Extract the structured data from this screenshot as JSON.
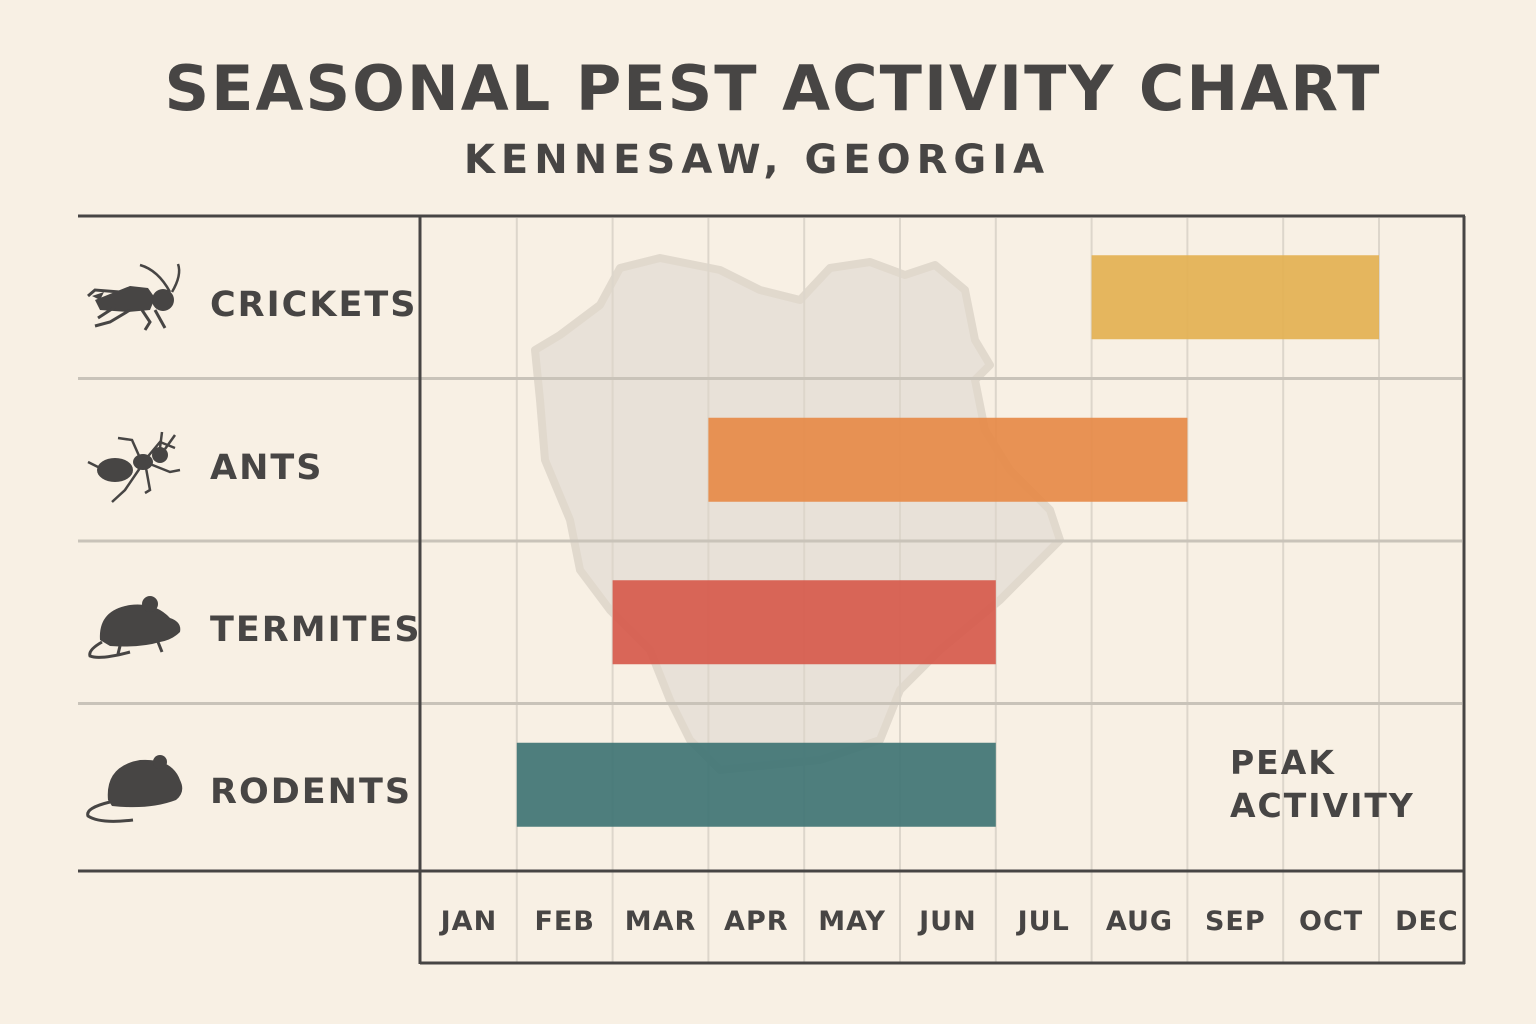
{
  "chart_data": {
    "type": "bar",
    "title": "SEASONAL PEST ACTIVITY CHART",
    "subtitle": "KENNESAW, GEORGIA",
    "months": [
      "JAN",
      "FEB",
      "MAR",
      "APR",
      "MAY",
      "JUN",
      "JUL",
      "AUG",
      "SEP",
      "OCT",
      "DEC"
    ],
    "series": [
      {
        "name": "CRICKETS",
        "icon": "cricket-icon",
        "start_month": "AUG",
        "end_month": "OCT",
        "color": "#e3b152"
      },
      {
        "name": "ANTS",
        "icon": "ant-icon",
        "start_month": "APR",
        "end_month": "AUG",
        "color": "#e68a48"
      },
      {
        "name": "TERMITES",
        "icon": "mouse-icon",
        "start_month": "MAR",
        "end_month": "JUN",
        "color": "#d65a4c"
      },
      {
        "name": "RODENTS",
        "icon": "rodent-icon",
        "start_month": "FEB",
        "end_month": "JUN",
        "color": "#3f7474"
      }
    ],
    "annotation": {
      "line1": "PEAK",
      "line2": "ACTIVITY"
    },
    "grid": true
  },
  "colors": {
    "background": "#f8f0e4",
    "text": "#474544",
    "border": "#474544",
    "grid": "#ddd6cb",
    "map": "#e6dfd6"
  }
}
